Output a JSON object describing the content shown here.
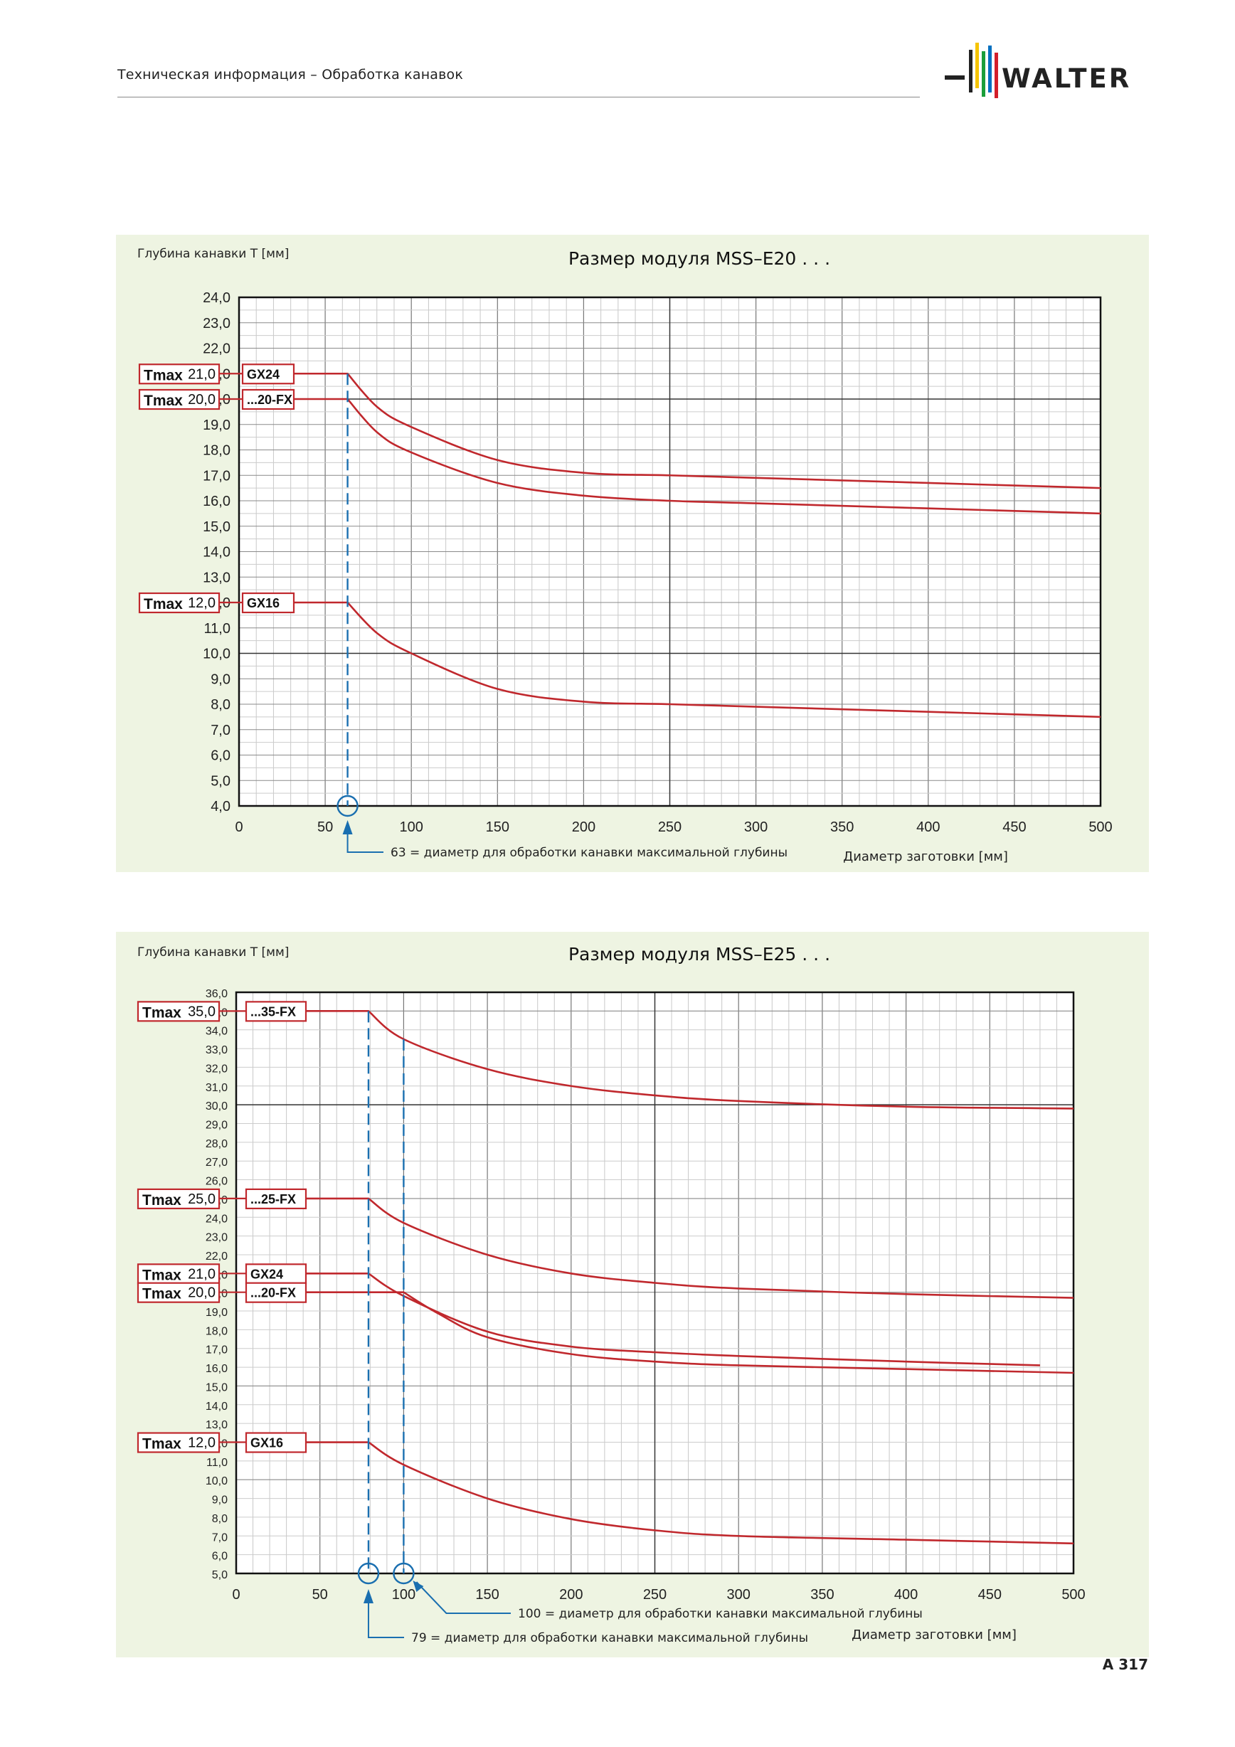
{
  "header": {
    "title": "Техническая информация – Обработка канавок"
  },
  "logo": {
    "text": "WALTER",
    "stripe_colors": [
      "#f5c400",
      "#1a9e3a",
      "#0070c0",
      "#d21f2b",
      "#f07d00"
    ]
  },
  "page_number": "A 317",
  "colors": {
    "curve": "#c0282d",
    "blue": "#1a6fb0",
    "panel_bg": "#eef4e2"
  },
  "chart_data": [
    {
      "type": "line",
      "title": "Размер модуля MSS–E20 . . .",
      "ylabel": "Глубина канавки T [мм]",
      "xlabel": "Диаметр заготовки [мм]",
      "xlim": [
        0,
        500
      ],
      "ylim": [
        4,
        24
      ],
      "x_ticks": [
        "0",
        "50",
        "100",
        "150",
        "200",
        "250",
        "300",
        "350",
        "400",
        "450",
        "500"
      ],
      "y_ticks": [
        "4,0",
        "5,0",
        "6,0",
        "7,0",
        "8,0",
        "9,0",
        "10,0",
        "11,0",
        "12,0",
        "13,0",
        "14,0",
        "15,0",
        "16,0",
        "17,0",
        "18,0",
        "19,0",
        "20,0",
        "21,0",
        "22,0",
        "23,0",
        "24,0"
      ],
      "grid": true,
      "series": [
        {
          "name": "GX24",
          "tmax_label": "Tmax",
          "tmax_value": "21,0",
          "x": [
            0,
            63,
            80,
            100,
            150,
            200,
            250,
            300,
            400,
            500
          ],
          "y": [
            21,
            21,
            19.7,
            18.9,
            17.6,
            17.1,
            17.0,
            16.9,
            16.7,
            16.5
          ]
        },
        {
          "name": "...20-FX",
          "tmax_label": "Tmax",
          "tmax_value": "20,0",
          "x": [
            0,
            63,
            80,
            100,
            150,
            200,
            250,
            300,
            400,
            500
          ],
          "y": [
            20,
            20,
            18.7,
            17.9,
            16.7,
            16.2,
            16.0,
            15.9,
            15.7,
            15.5
          ]
        },
        {
          "name": "GX16",
          "tmax_label": "Tmax",
          "tmax_value": "12,0",
          "x": [
            0,
            63,
            80,
            100,
            150,
            200,
            250,
            300,
            400,
            500
          ],
          "y": [
            12,
            12,
            10.8,
            10.0,
            8.6,
            8.1,
            8.0,
            7.9,
            7.7,
            7.5
          ]
        }
      ],
      "markers": [
        {
          "x": 63,
          "label": "63 = диаметр для обработки канавки максимальной глубины"
        }
      ]
    },
    {
      "type": "line",
      "title": "Размер модуля MSS–E25 . . .",
      "ylabel": "Глубина канавки T [мм]",
      "xlabel": "Диаметр заготовки [мм]",
      "xlim": [
        0,
        500
      ],
      "ylim": [
        5,
        36
      ],
      "x_ticks": [
        "0",
        "50",
        "100",
        "150",
        "200",
        "250",
        "300",
        "350",
        "400",
        "450",
        "500"
      ],
      "y_ticks": [
        "5,0",
        "6,0",
        "7,0",
        "8,0",
        "9,0",
        "10,0",
        "11,0",
        "12,0",
        "13,0",
        "14,0",
        "15,0",
        "16,0",
        "17,0",
        "18,0",
        "19,0",
        "20,0",
        "21,0",
        "22,0",
        "23,0",
        "24,0",
        "25,0",
        "26,0",
        "27,0",
        "28,0",
        "29,0",
        "30,0",
        "31,0",
        "32,0",
        "33,0",
        "34,0",
        "35,0",
        "36,0"
      ],
      "grid": true,
      "series": [
        {
          "name": "...35-FX",
          "tmax_label": "Tmax",
          "tmax_value": "35,0",
          "x": [
            0,
            79,
            100,
            150,
            200,
            250,
            300,
            400,
            500
          ],
          "y": [
            35,
            35,
            33.5,
            31.9,
            31.0,
            30.5,
            30.2,
            29.9,
            29.8
          ]
        },
        {
          "name": "...25-FX",
          "tmax_label": "Tmax",
          "tmax_value": "25,0",
          "x": [
            0,
            79,
            100,
            150,
            200,
            250,
            300,
            400,
            500
          ],
          "y": [
            25,
            25,
            23.7,
            22.0,
            21.0,
            20.5,
            20.2,
            19.9,
            19.7
          ]
        },
        {
          "name": "GX24",
          "tmax_label": "Tmax",
          "tmax_value": "21,0",
          "x": [
            0,
            79,
            100,
            150,
            200,
            250,
            300,
            400,
            480
          ],
          "y": [
            21,
            21,
            19.8,
            17.9,
            17.1,
            16.8,
            16.6,
            16.3,
            16.1
          ]
        },
        {
          "name": "...20-FX",
          "tmax_label": "Tmax",
          "tmax_value": "20,0",
          "x": [
            0,
            100,
            120,
            150,
            200,
            250,
            300,
            400,
            500
          ],
          "y": [
            20,
            20,
            18.9,
            17.6,
            16.7,
            16.3,
            16.1,
            15.9,
            15.7
          ]
        },
        {
          "name": "GX16",
          "tmax_label": "Tmax",
          "tmax_value": "12,0",
          "x": [
            0,
            79,
            100,
            150,
            200,
            250,
            300,
            400,
            500
          ],
          "y": [
            12,
            12,
            10.8,
            9.0,
            7.9,
            7.3,
            7.0,
            6.8,
            6.6
          ]
        }
      ],
      "markers": [
        {
          "x": 100,
          "label": "100 = диаметр для обработки канавки максимальной глубины"
        },
        {
          "x": 79,
          "label": "79 = диаметр для обработки канавки максимальной глубины"
        }
      ]
    }
  ]
}
